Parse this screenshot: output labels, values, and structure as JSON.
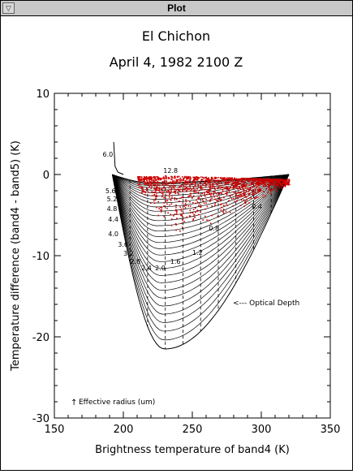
{
  "window": {
    "title": "Plot"
  },
  "chart_data": {
    "type": "scatter",
    "title": "El Chichon",
    "subtitle": "April 4, 1982 2100 Z",
    "xlabel": "Brightness temperature of band4 (K)",
    "ylabel": "Temperature difference (band4 - band5) (K)",
    "xlim": [
      150,
      350
    ],
    "ylim": [
      -30,
      10
    ],
    "xticks": [
      "150",
      "200",
      "250",
      "300",
      "350"
    ],
    "yticks": [
      "10",
      "0",
      "-10",
      "-20",
      "-30"
    ],
    "grid": false,
    "legend": null,
    "annotations": {
      "optical_depth": "<--- Optical Depth",
      "effective_radius": "Effective radius (um)"
    },
    "radius_labels": [
      {
        "text": "6.0",
        "x": 185,
        "y": 2.2
      },
      {
        "text": "5.6",
        "x": 187,
        "y": -2.3
      },
      {
        "text": "5.2",
        "x": 188,
        "y": -3.3
      },
      {
        "text": "4.8",
        "x": 188,
        "y": -4.5
      },
      {
        "text": "4.4",
        "x": 189,
        "y": -5.8
      },
      {
        "text": "4.0",
        "x": 189,
        "y": -7.6
      },
      {
        "text": "3.6",
        "x": 196,
        "y": -8.9
      },
      {
        "text": "3.2",
        "x": 200,
        "y": -10.0
      },
      {
        "text": "2.8",
        "x": 205,
        "y": -11.0
      },
      {
        "text": "2.4",
        "x": 213,
        "y": -11.8
      }
    ],
    "depth_labels": [
      {
        "text": "12.8",
        "x": 229,
        "y": 0.2
      },
      {
        "text": "0.4",
        "x": 293,
        "y": -4.2
      },
      {
        "text": "0.8",
        "x": 262,
        "y": -6.9
      },
      {
        "text": "1.2",
        "x": 250,
        "y": -9.9
      },
      {
        "text": "1.6",
        "x": 234,
        "y": -11.0
      },
      {
        "text": "2.0",
        "x": 223,
        "y": -11.8
      }
    ],
    "arrow_label_symbol": "↑",
    "colors": {
      "data_points": "#cc0000",
      "model_curves": "#000000"
    }
  }
}
